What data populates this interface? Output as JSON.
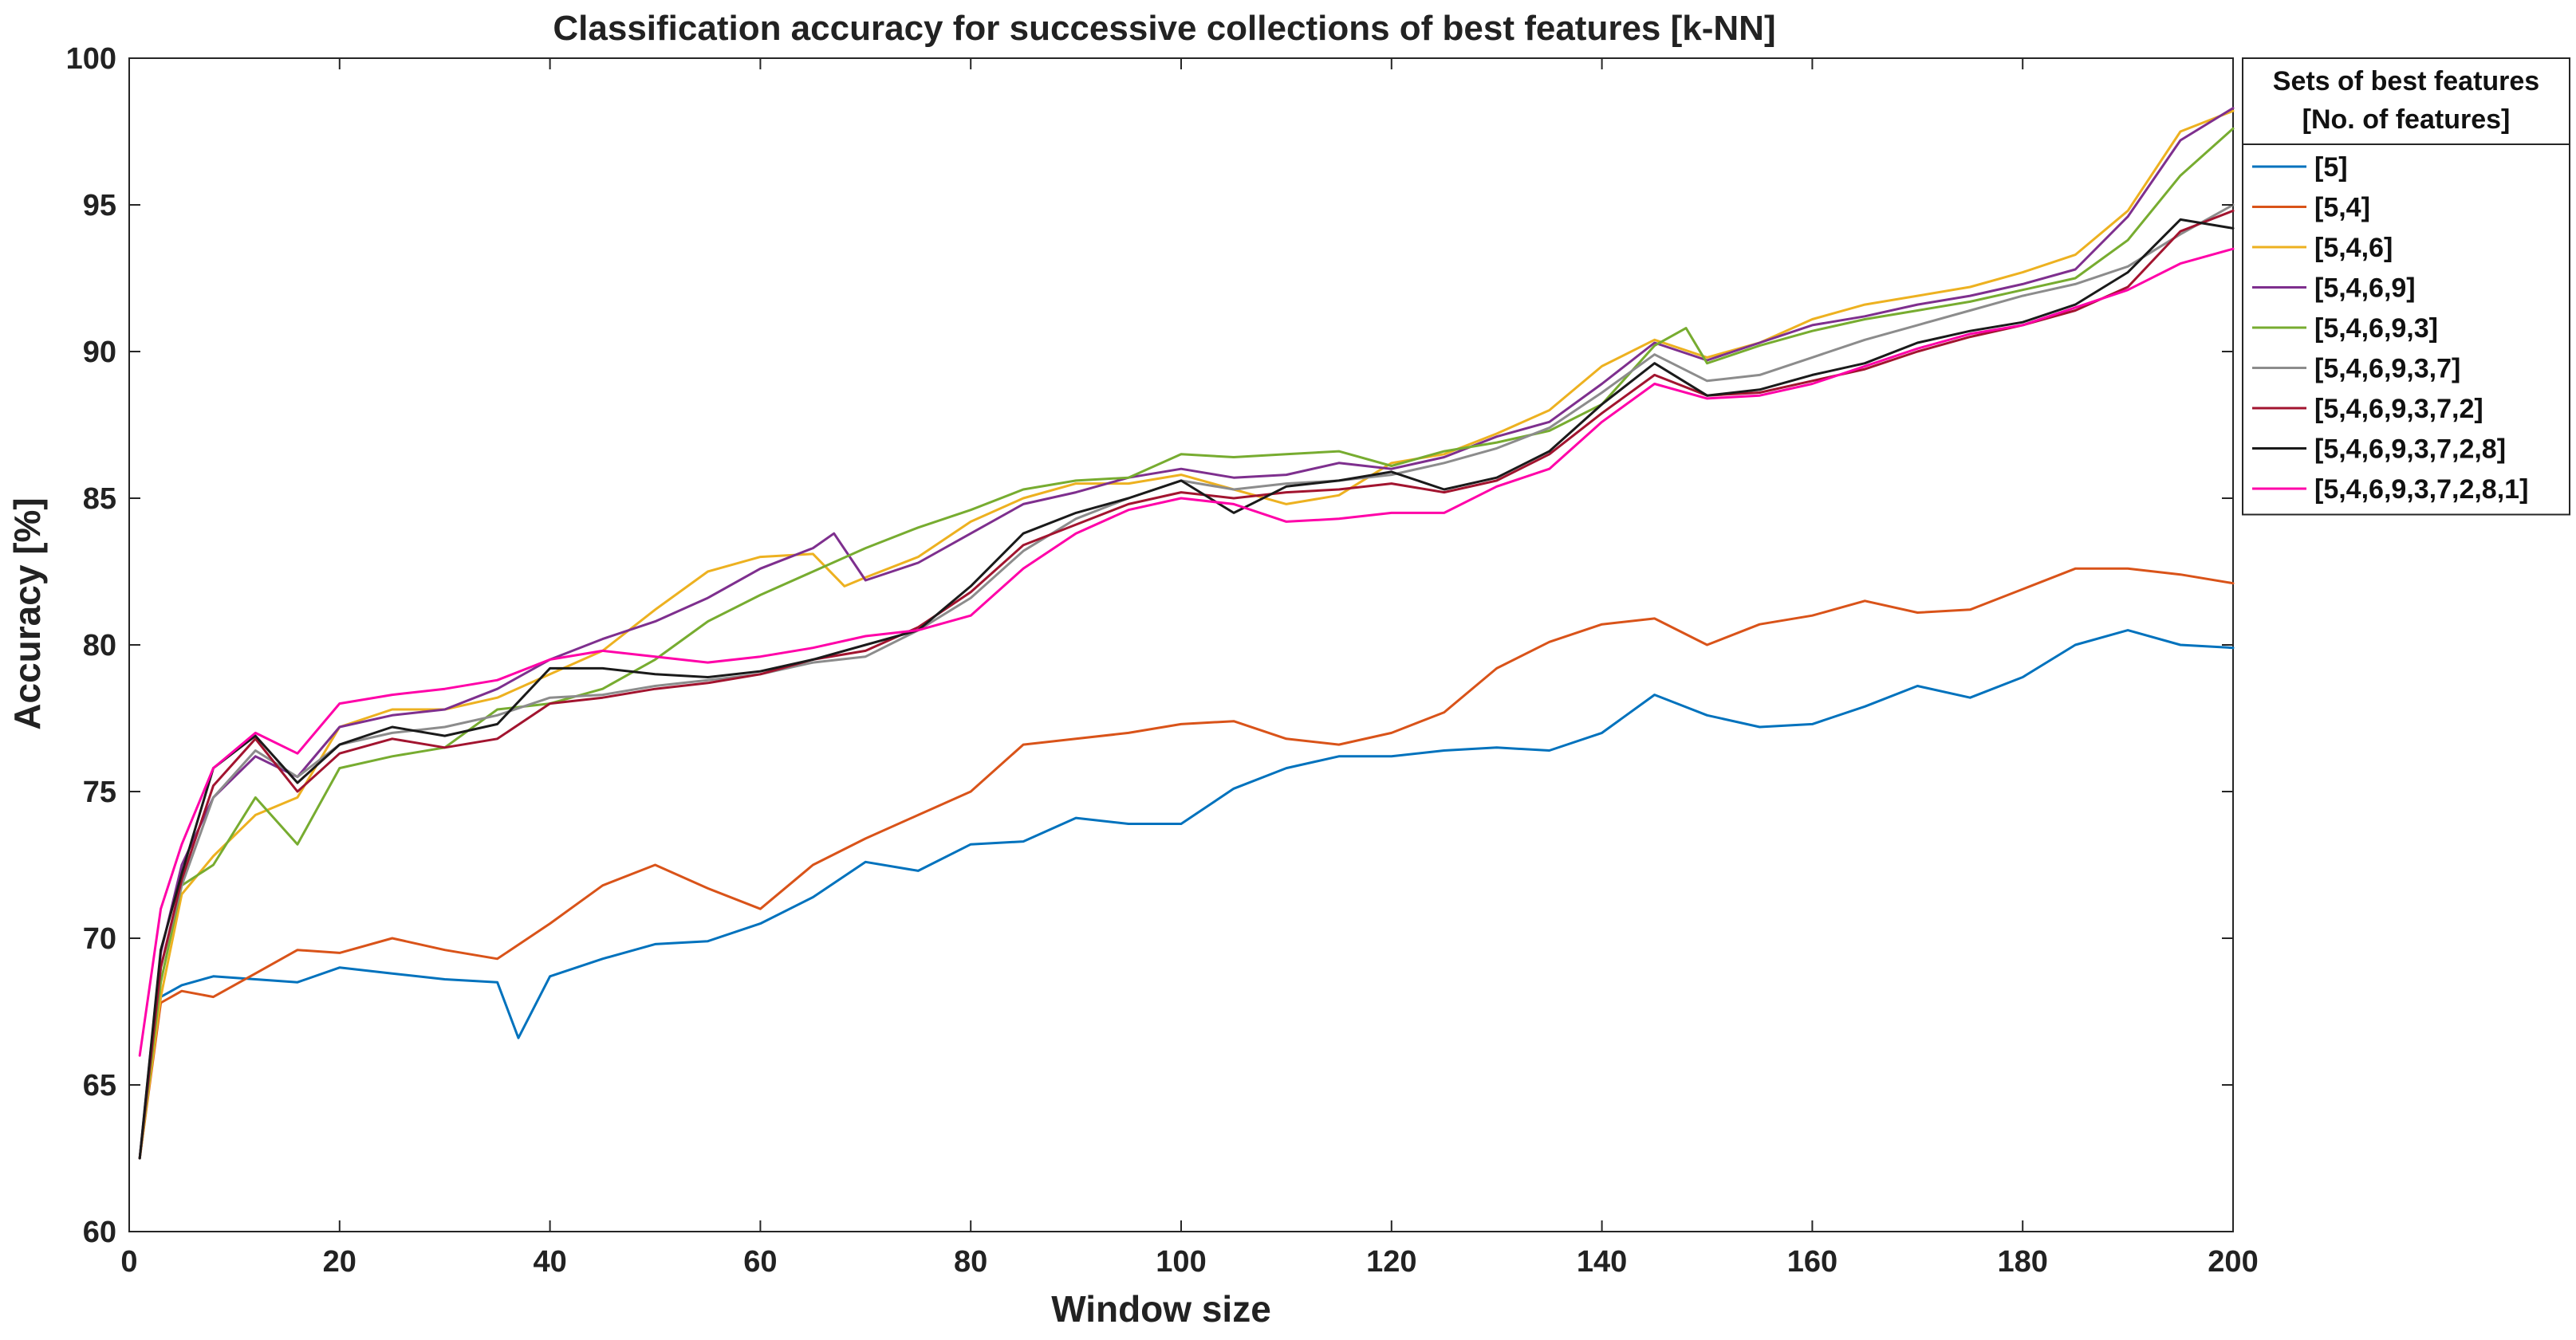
{
  "chart_data": {
    "type": "line",
    "title": "Classification accuracy for successive collections of best features [k-NN]",
    "xlabel": "Window size",
    "ylabel": "Accuracy [%]",
    "xlim": [
      0,
      200
    ],
    "ylim": [
      60,
      100
    ],
    "xticks": [
      0,
      20,
      40,
      60,
      80,
      100,
      120,
      140,
      160,
      180,
      200
    ],
    "yticks": [
      60,
      65,
      70,
      75,
      80,
      85,
      90,
      95,
      100
    ],
    "grid": false,
    "legend_position": "outside-right-top",
    "legend_title_lines": [
      "Sets of best features",
      "[No. of features]"
    ],
    "series": [
      {
        "name": "[5]",
        "color": "#0072BD",
        "x": [
          1,
          3,
          5,
          8,
          12,
          16,
          20,
          25,
          30,
          35,
          37,
          40,
          45,
          50,
          55,
          60,
          65,
          70,
          75,
          80,
          85,
          90,
          95,
          100,
          105,
          110,
          115,
          120,
          125,
          130,
          135,
          140,
          145,
          150,
          155,
          160,
          165,
          170,
          175,
          180,
          185,
          190,
          195,
          200
        ],
        "y": [
          62.5,
          68.0,
          68.4,
          68.7,
          68.6,
          68.5,
          69.0,
          68.8,
          68.6,
          68.5,
          66.6,
          68.7,
          69.3,
          69.8,
          69.9,
          70.5,
          71.4,
          72.6,
          72.3,
          73.2,
          73.3,
          74.1,
          73.9,
          73.9,
          75.1,
          75.8,
          76.2,
          76.2,
          76.4,
          76.5,
          76.4,
          77.0,
          78.3,
          77.6,
          77.2,
          77.3,
          77.9,
          78.6,
          78.2,
          78.9,
          80.0,
          80.5,
          80.0,
          79.9
        ]
      },
      {
        "name": "[5,4]",
        "color": "#D95319",
        "x": [
          1,
          3,
          5,
          8,
          12,
          16,
          20,
          25,
          30,
          35,
          40,
          45,
          50,
          55,
          60,
          65,
          70,
          75,
          80,
          85,
          90,
          95,
          100,
          105,
          110,
          115,
          120,
          125,
          130,
          135,
          140,
          145,
          150,
          155,
          160,
          165,
          170,
          175,
          180,
          185,
          190,
          195,
          200
        ],
        "y": [
          62.5,
          67.8,
          68.2,
          68.0,
          68.8,
          69.6,
          69.5,
          70.0,
          69.6,
          69.3,
          70.5,
          71.8,
          72.5,
          71.7,
          71.0,
          72.5,
          73.4,
          74.2,
          75.0,
          76.6,
          76.8,
          77.0,
          77.3,
          77.4,
          76.8,
          76.6,
          77.0,
          77.7,
          79.2,
          80.1,
          80.7,
          80.9,
          80.0,
          80.7,
          81.0,
          81.5,
          81.1,
          81.2,
          81.9,
          82.6,
          82.6,
          82.4,
          82.1
        ]
      },
      {
        "name": "[5,4,6]",
        "color": "#EDB120",
        "x": [
          1,
          3,
          5,
          8,
          12,
          16,
          20,
          25,
          30,
          35,
          40,
          45,
          50,
          55,
          60,
          65,
          68,
          70,
          75,
          80,
          85,
          90,
          95,
          100,
          105,
          110,
          115,
          120,
          125,
          130,
          135,
          140,
          145,
          150,
          155,
          160,
          165,
          170,
          175,
          180,
          185,
          190,
          195,
          200
        ],
        "y": [
          62.5,
          68.0,
          71.5,
          72.8,
          74.2,
          74.8,
          77.2,
          77.8,
          77.8,
          78.2,
          79.0,
          79.8,
          81.2,
          82.5,
          83.0,
          83.1,
          82.0,
          82.3,
          83.0,
          84.2,
          85.0,
          85.5,
          85.5,
          85.8,
          85.3,
          84.8,
          85.1,
          86.2,
          86.5,
          87.2,
          88.0,
          89.5,
          90.4,
          89.8,
          90.3,
          91.1,
          91.6,
          91.9,
          92.2,
          92.7,
          93.3,
          94.8,
          97.5,
          98.2
        ]
      },
      {
        "name": "[5,4,6,9]",
        "color": "#7E2F8E",
        "x": [
          1,
          3,
          5,
          8,
          12,
          16,
          20,
          25,
          30,
          35,
          40,
          45,
          50,
          55,
          60,
          65,
          67,
          70,
          75,
          80,
          85,
          90,
          95,
          100,
          105,
          110,
          115,
          120,
          125,
          130,
          135,
          140,
          145,
          150,
          155,
          160,
          165,
          170,
          175,
          180,
          185,
          190,
          195,
          200
        ],
        "y": [
          62.5,
          69.5,
          72.5,
          74.8,
          76.2,
          75.5,
          77.2,
          77.6,
          77.8,
          78.5,
          79.5,
          80.2,
          80.8,
          81.6,
          82.6,
          83.3,
          83.8,
          82.2,
          82.8,
          83.8,
          84.8,
          85.2,
          85.7,
          86.0,
          85.7,
          85.8,
          86.2,
          86.0,
          86.4,
          87.1,
          87.6,
          88.9,
          90.3,
          89.7,
          90.3,
          90.9,
          91.2,
          91.6,
          91.9,
          92.3,
          92.8,
          94.6,
          97.2,
          98.3
        ]
      },
      {
        "name": "[5,4,6,9,3]",
        "color": "#77AC30",
        "x": [
          1,
          3,
          5,
          8,
          12,
          16,
          20,
          25,
          30,
          35,
          40,
          45,
          50,
          55,
          60,
          65,
          70,
          75,
          80,
          85,
          90,
          95,
          100,
          105,
          110,
          115,
          120,
          125,
          130,
          135,
          140,
          145,
          148,
          150,
          155,
          160,
          165,
          170,
          175,
          180,
          185,
          190,
          195,
          200
        ],
        "y": [
          62.5,
          68.5,
          71.8,
          72.5,
          74.8,
          73.2,
          75.8,
          76.2,
          76.5,
          77.8,
          78.0,
          78.5,
          79.5,
          80.8,
          81.7,
          82.5,
          83.3,
          84.0,
          84.6,
          85.3,
          85.6,
          85.7,
          86.5,
          86.4,
          86.5,
          86.6,
          86.1,
          86.6,
          86.9,
          87.3,
          88.2,
          90.2,
          90.8,
          89.6,
          90.2,
          90.7,
          91.1,
          91.4,
          91.7,
          92.1,
          92.5,
          93.8,
          96.0,
          97.6
        ]
      },
      {
        "name": "[5,4,6,9,3,7]",
        "color": "#8c8c8c",
        "x": [
          1,
          3,
          5,
          8,
          12,
          16,
          20,
          25,
          30,
          35,
          40,
          45,
          50,
          55,
          60,
          65,
          70,
          75,
          80,
          85,
          90,
          95,
          100,
          105,
          110,
          115,
          120,
          125,
          130,
          135,
          140,
          145,
          150,
          155,
          160,
          165,
          170,
          175,
          180,
          185,
          190,
          195,
          200
        ],
        "y": [
          62.5,
          69.0,
          71.8,
          74.8,
          76.4,
          75.5,
          76.6,
          77.0,
          77.2,
          77.6,
          78.2,
          78.3,
          78.6,
          78.8,
          79.0,
          79.4,
          79.6,
          80.5,
          81.6,
          83.2,
          84.3,
          85.0,
          85.6,
          85.3,
          85.5,
          85.6,
          85.8,
          86.2,
          86.7,
          87.4,
          88.6,
          89.9,
          89.0,
          89.2,
          89.8,
          90.4,
          90.9,
          91.4,
          91.9,
          92.3,
          92.9,
          94.0,
          95.0
        ]
      },
      {
        "name": "[5,4,6,9,3,7,2]",
        "color": "#A2142F",
        "x": [
          1,
          3,
          5,
          8,
          12,
          16,
          20,
          25,
          30,
          35,
          40,
          45,
          50,
          55,
          60,
          65,
          70,
          75,
          80,
          85,
          90,
          95,
          100,
          105,
          110,
          115,
          120,
          125,
          130,
          135,
          140,
          145,
          150,
          155,
          160,
          165,
          170,
          175,
          180,
          185,
          190,
          195,
          200
        ],
        "y": [
          62.5,
          69.0,
          72.0,
          75.2,
          76.8,
          75.0,
          76.3,
          76.8,
          76.5,
          76.8,
          78.0,
          78.2,
          78.5,
          78.7,
          79.0,
          79.5,
          79.8,
          80.6,
          81.8,
          83.4,
          84.1,
          84.8,
          85.2,
          85.0,
          85.2,
          85.3,
          85.5,
          85.2,
          85.6,
          86.5,
          87.9,
          89.2,
          88.5,
          88.6,
          89.0,
          89.4,
          90.0,
          90.5,
          90.9,
          91.4,
          92.2,
          94.1,
          94.8
        ]
      },
      {
        "name": "[5,4,6,9,3,7,2,8]",
        "color": "#1a1a1a",
        "x": [
          1,
          3,
          5,
          8,
          12,
          16,
          20,
          25,
          30,
          35,
          40,
          45,
          50,
          55,
          60,
          65,
          70,
          75,
          80,
          85,
          90,
          95,
          100,
          105,
          110,
          115,
          120,
          125,
          130,
          135,
          140,
          145,
          150,
          155,
          160,
          165,
          170,
          175,
          180,
          185,
          190,
          195,
          200
        ],
        "y": [
          62.5,
          69.6,
          72.2,
          75.8,
          76.9,
          75.3,
          76.6,
          77.2,
          76.9,
          77.3,
          79.2,
          79.2,
          79.0,
          78.9,
          79.1,
          79.5,
          80.0,
          80.5,
          82.0,
          83.8,
          84.5,
          85.0,
          85.6,
          84.5,
          85.4,
          85.6,
          85.9,
          85.3,
          85.7,
          86.6,
          88.2,
          89.6,
          88.5,
          88.7,
          89.2,
          89.6,
          90.3,
          90.7,
          91.0,
          91.6,
          92.7,
          94.5,
          94.2
        ]
      },
      {
        "name": "[5,4,6,9,3,7,2,8,1]",
        "color": "#FF00A8",
        "x": [
          1,
          3,
          5,
          8,
          12,
          16,
          20,
          25,
          30,
          35,
          40,
          45,
          50,
          55,
          60,
          65,
          70,
          75,
          80,
          85,
          90,
          95,
          100,
          105,
          110,
          115,
          120,
          125,
          130,
          135,
          140,
          145,
          150,
          155,
          160,
          165,
          170,
          175,
          180,
          185,
          190,
          195,
          200
        ],
        "y": [
          66.0,
          71.0,
          73.2,
          75.8,
          77.0,
          76.3,
          78.0,
          78.3,
          78.5,
          78.8,
          79.5,
          79.8,
          79.6,
          79.4,
          79.6,
          79.9,
          80.3,
          80.5,
          81.0,
          82.6,
          83.8,
          84.6,
          85.0,
          84.8,
          84.2,
          84.3,
          84.5,
          84.5,
          85.4,
          86.0,
          87.6,
          88.9,
          88.4,
          88.5,
          88.9,
          89.5,
          90.1,
          90.6,
          90.9,
          91.5,
          92.1,
          93.0,
          93.5
        ]
      }
    ]
  }
}
